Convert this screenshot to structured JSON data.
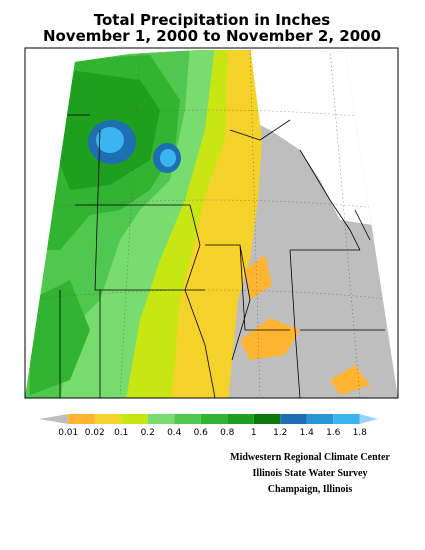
{
  "header": {
    "title": "Total Precipitation in Inches",
    "subtitle": "November 1, 2000 to November 2, 2000"
  },
  "legend": {
    "labels": [
      "0.01",
      "0.02",
      "0.1",
      "0.2",
      "0.4",
      "0.6",
      "0.8",
      "1",
      "1.2",
      "1.4",
      "1.6",
      "1.8"
    ],
    "colors": [
      "#bebebe",
      "#ffb432",
      "#f5d22a",
      "#c8e614",
      "#78dc6e",
      "#50c850",
      "#32b432",
      "#1ea01e",
      "#0a780a",
      "#1e6eb4",
      "#2896d2",
      "#3cb4f0",
      "#96d2fa"
    ]
  },
  "credits": [
    "Midwestern Regional Climate Center",
    "Illinois State Water Survey",
    "Champaign, Illinois"
  ]
}
